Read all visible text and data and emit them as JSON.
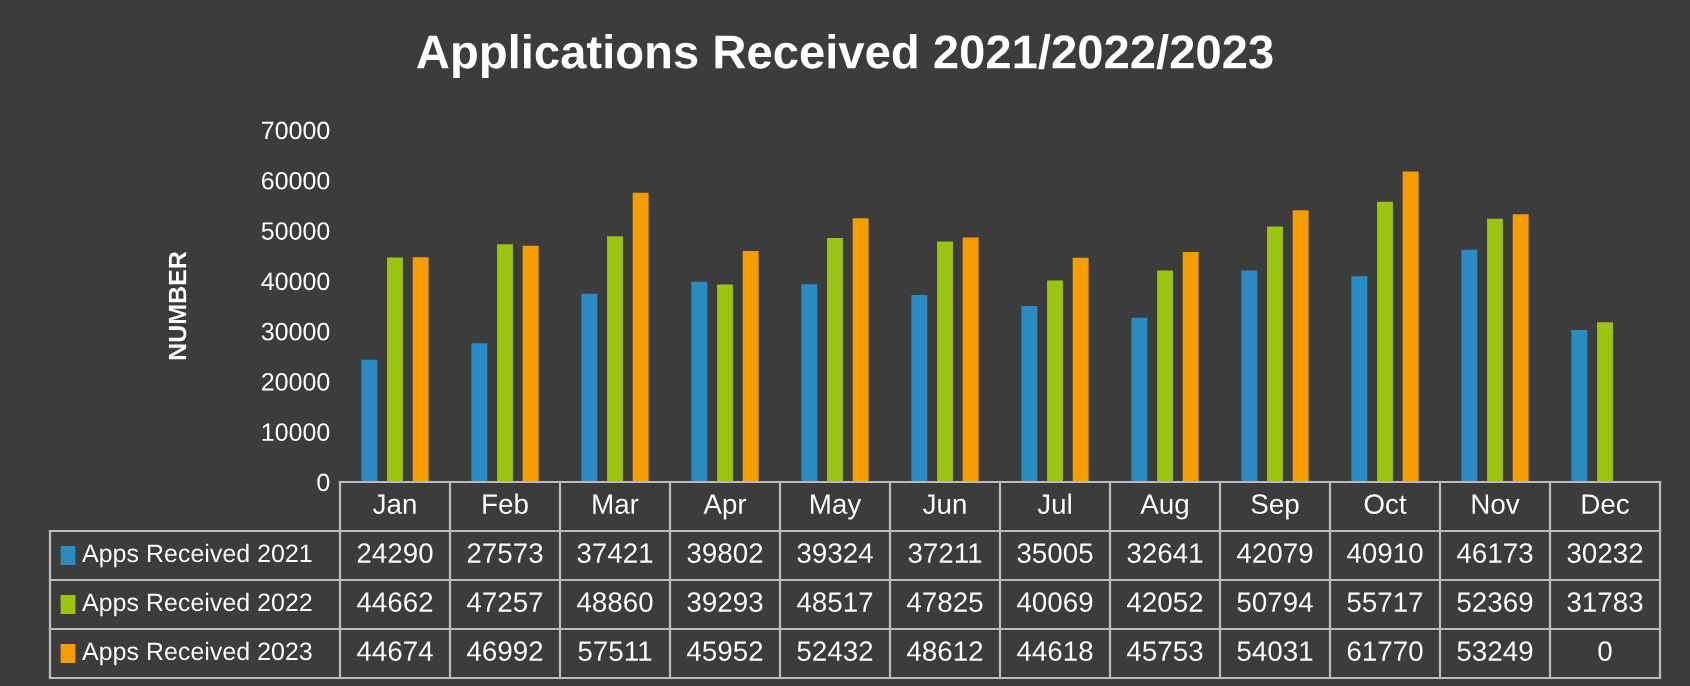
{
  "chart_data": {
    "type": "bar",
    "title": "Applications Received 2021/2022/2023",
    "ylabel": "NUMBER",
    "categories": [
      "Jan",
      "Feb",
      "Mar",
      "Apr",
      "May",
      "Jun",
      "Jul",
      "Aug",
      "Sep",
      "Oct",
      "Nov",
      "Dec"
    ],
    "series": [
      {
        "name": "Apps Received 2021",
        "color": "#2b8cc4",
        "values": [
          24290,
          27573,
          37421,
          39802,
          39324,
          37211,
          35005,
          32641,
          42079,
          40910,
          46173,
          30232
        ]
      },
      {
        "name": "Apps Received 2022",
        "color": "#9cc413",
        "values": [
          44662,
          47257,
          48860,
          39293,
          48517,
          47825,
          40069,
          42052,
          50794,
          55717,
          52369,
          31783
        ]
      },
      {
        "name": "Apps Received 2023",
        "color": "#f59c00",
        "values": [
          44674,
          46992,
          57511,
          45952,
          52432,
          48612,
          44618,
          45753,
          54031,
          61770,
          53249,
          0
        ]
      }
    ],
    "ylim": [
      0,
      70000
    ],
    "yticks": [
      0,
      10000,
      20000,
      30000,
      40000,
      50000,
      60000,
      70000
    ],
    "grid": false,
    "legend": "bottom",
    "data_labels": true
  }
}
